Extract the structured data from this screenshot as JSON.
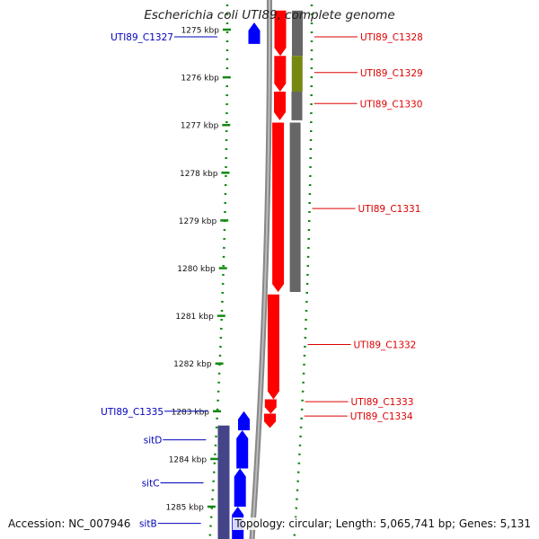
{
  "header": {
    "title": "Escherichia coli UTI89, complete genome"
  },
  "footer": {
    "accession": "Accession: NC_007946",
    "summary": "Topology: circular; Length: 5,065,741 bp; Genes: 5,131"
  },
  "ticks": [
    {
      "kbp": 1275,
      "label": "1275 kbp"
    },
    {
      "kbp": 1276,
      "label": "1276 kbp"
    },
    {
      "kbp": 1277,
      "label": "1277 kbp"
    },
    {
      "kbp": 1278,
      "label": "1278 kbp"
    },
    {
      "kbp": 1279,
      "label": "1279 kbp"
    },
    {
      "kbp": 1280,
      "label": "1280 kbp"
    },
    {
      "kbp": 1281,
      "label": "1281 kbp"
    },
    {
      "kbp": 1282,
      "label": "1282 kbp"
    },
    {
      "kbp": 1283,
      "label": "1283 kbp"
    },
    {
      "kbp": 1284,
      "label": "1284 kbp"
    },
    {
      "kbp": 1285,
      "label": "1285 kbp"
    }
  ],
  "genes_reverse": [
    {
      "start_kbp": 1274.85,
      "end_kbp": 1275.3,
      "color": "#0000ff"
    },
    {
      "start_kbp": 1283.0,
      "end_kbp": 1283.4,
      "color": "#0000ff"
    },
    {
      "start_kbp": 1283.4,
      "end_kbp": 1284.2,
      "color": "#0000ff"
    },
    {
      "start_kbp": 1284.2,
      "end_kbp": 1285.0,
      "color": "#0000ff"
    },
    {
      "start_kbp": 1285.0,
      "end_kbp": 1285.7,
      "color": "#0000ff"
    }
  ],
  "genes_forward": [
    {
      "start_kbp": 1274.6,
      "end_kbp": 1275.55,
      "color": "#ff0000"
    },
    {
      "start_kbp": 1275.55,
      "end_kbp": 1276.3,
      "color": "#ff0000"
    },
    {
      "start_kbp": 1276.3,
      "end_kbp": 1276.9,
      "color": "#ff0000"
    },
    {
      "start_kbp": 1276.95,
      "end_kbp": 1280.5,
      "color": "#ff0000"
    },
    {
      "start_kbp": 1280.55,
      "end_kbp": 1282.75,
      "color": "#ff0000"
    },
    {
      "start_kbp": 1282.75,
      "end_kbp": 1283.05,
      "color": "#ff0000"
    },
    {
      "start_kbp": 1283.05,
      "end_kbp": 1283.35,
      "color": "#ff0000"
    }
  ],
  "features_forward": [
    {
      "start_kbp": 1274.6,
      "end_kbp": 1275.55,
      "color": "#666666"
    },
    {
      "start_kbp": 1275.55,
      "end_kbp": 1276.3,
      "color": "#778811"
    },
    {
      "start_kbp": 1276.3,
      "end_kbp": 1276.9,
      "color": "#666666"
    },
    {
      "start_kbp": 1276.95,
      "end_kbp": 1280.5,
      "color": "#666666"
    }
  ],
  "features_reverse": [
    {
      "start_kbp": 1283.3,
      "end_kbp": 1285.7,
      "color": "#444488"
    }
  ],
  "gene_labels": [
    {
      "text": "UTI89_C1327",
      "side": "left",
      "kbp": 1275.15,
      "color": "#0000bb"
    },
    {
      "text": "UTI89_C1328",
      "side": "right",
      "kbp": 1275.15,
      "color": "#dd0000"
    },
    {
      "text": "UTI89_C1329",
      "side": "right",
      "kbp": 1275.9,
      "color": "#dd0000"
    },
    {
      "text": "UTI89_C1330",
      "side": "right",
      "kbp": 1276.55,
      "color": "#dd0000"
    },
    {
      "text": "UTI89_C1331",
      "side": "right",
      "kbp": 1278.75,
      "color": "#dd0000"
    },
    {
      "text": "UTI89_C1332",
      "side": "right",
      "kbp": 1281.6,
      "color": "#dd0000"
    },
    {
      "text": "UTI89_C1333",
      "side": "right",
      "kbp": 1282.8,
      "color": "#dd0000"
    },
    {
      "text": "UTI89_C1334",
      "side": "right",
      "kbp": 1283.1,
      "color": "#dd0000"
    },
    {
      "text": "UTI89_C1335",
      "side": "left",
      "kbp": 1283.0,
      "color": "#0000bb"
    },
    {
      "text": "sitD",
      "side": "left",
      "kbp": 1283.6,
      "color": "#0000bb"
    },
    {
      "text": "sitC",
      "side": "left",
      "kbp": 1284.5,
      "color": "#0000bb"
    },
    {
      "text": "sitB",
      "side": "left",
      "kbp": 1285.35,
      "color": "#0000bb"
    }
  ]
}
